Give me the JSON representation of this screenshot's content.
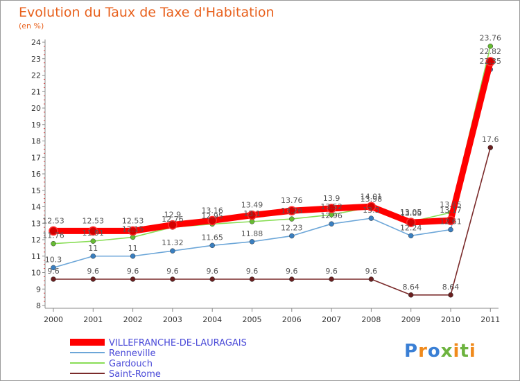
{
  "header": {
    "title": "Evolution du Taux de Taxe d'Habitation",
    "subtitle": "(en %)"
  },
  "brand": {
    "letters": [
      "P",
      "r",
      "o",
      "x",
      "i",
      "t",
      "i"
    ],
    "colors": [
      "#3a7fd5",
      "#f08a1c",
      "#3a7fd5",
      "#6db33f",
      "#f08a1c",
      "#6db33f",
      "#f08a1c"
    ]
  },
  "chart_data": {
    "type": "line",
    "title": "Evolution du Taux de Taxe d'Habitation",
    "ylabel": "(en %)",
    "xlabel": "",
    "x": [
      "2000",
      "2001",
      "2002",
      "2003",
      "2004",
      "2005",
      "2006",
      "2007",
      "2008",
      "2009",
      "2010",
      "2011"
    ],
    "ylim": [
      8,
      24
    ],
    "yticks": [
      "8",
      "9",
      "10",
      "11",
      "12",
      "13",
      "14",
      "15",
      "16",
      "17",
      "18",
      "19",
      "20",
      "21",
      "22",
      "23",
      "24"
    ],
    "grid": false,
    "legend": "bottom-left",
    "series": [
      {
        "name": "VILLEFRANCHE-DE-LAURAGAIS",
        "color": "#ff0000",
        "dot_color": "#d40000",
        "thick": true,
        "values": [
          12.53,
          12.53,
          12.53,
          12.9,
          13.16,
          13.49,
          13.76,
          13.9,
          14.01,
          13.05,
          13.17,
          22.82
        ],
        "labels": [
          "12.53",
          "12.53",
          "12.53",
          "12.9",
          "13.16",
          "13.49",
          "13.76",
          "13.9",
          "14.01",
          "13.05",
          "13.17",
          "22.82"
        ]
      },
      {
        "name": "Renneville",
        "color": "#6ca6d8",
        "dot_color": "#3a7fc0",
        "thick": false,
        "values": [
          10.3,
          11,
          11,
          11.32,
          11.65,
          11.88,
          12.23,
          12.96,
          13.3,
          12.24,
          12.61,
          22.35
        ],
        "labels": [
          "10.3",
          "11",
          "11",
          "11.32",
          "11.65",
          "11.88",
          "12.23",
          "12.96",
          "13.3",
          "12.24",
          "12.61",
          "22.35"
        ]
      },
      {
        "name": "Gardouch",
        "color": "#88dd55",
        "dot_color": "#66bb33",
        "thick": false,
        "values": [
          11.76,
          11.91,
          12.15,
          12.76,
          12.95,
          13.1,
          13.26,
          13.52,
          13.98,
          13.09,
          13.65,
          23.76
        ],
        "labels": [
          "11.76",
          "11.91",
          "12.15",
          "12.76",
          "12.95",
          "13.1",
          "13.26",
          "13.52",
          "13.98",
          "13.09",
          "13.65",
          "23.76"
        ]
      },
      {
        "name": "Saint-Rome",
        "color": "#7a2a2a",
        "dot_color": "#6a1f1f",
        "thick": false,
        "values": [
          9.6,
          9.6,
          9.6,
          9.6,
          9.6,
          9.6,
          9.6,
          9.6,
          9.6,
          8.64,
          8.64,
          17.6
        ],
        "labels": [
          "9.6",
          "9.6",
          "9.6",
          "9.6",
          "9.6",
          "9.6",
          "9.6",
          "9.6",
          "9.6",
          "8.64",
          "8.64",
          "17.6"
        ]
      }
    ]
  }
}
